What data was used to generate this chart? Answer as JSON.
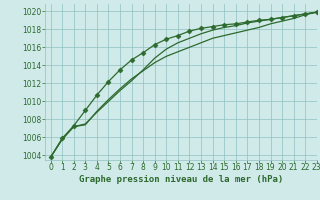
{
  "title": "Graphe pression niveau de la mer (hPa)",
  "background_color": "#d0eaea",
  "grid_color": "#90c0c0",
  "line_color": "#2d6a2d",
  "xlim": [
    -0.5,
    23
  ],
  "ylim": [
    1003.5,
    1020.8
  ],
  "yticks": [
    1004,
    1006,
    1008,
    1010,
    1012,
    1014,
    1016,
    1018,
    1020
  ],
  "xticks": [
    0,
    1,
    2,
    3,
    4,
    5,
    6,
    7,
    8,
    9,
    10,
    11,
    12,
    13,
    14,
    15,
    16,
    17,
    18,
    19,
    20,
    21,
    22,
    23
  ],
  "series": [
    {
      "y": [
        1003.8,
        1005.8,
        1007.2,
        1007.4,
        1008.9,
        1010.2,
        1011.4,
        1012.5,
        1013.4,
        1014.3,
        1015.0,
        1015.5,
        1016.0,
        1016.5,
        1017.0,
        1017.3,
        1017.6,
        1017.9,
        1018.2,
        1018.6,
        1018.9,
        1019.2,
        1019.6,
        1019.9
      ],
      "marker": false,
      "linewidth": 0.9
    },
    {
      "y": [
        1003.8,
        1005.8,
        1007.2,
        1007.5,
        1008.8,
        1010.0,
        1011.2,
        1012.3,
        1013.5,
        1014.8,
        1015.8,
        1016.5,
        1017.0,
        1017.5,
        1017.9,
        1018.2,
        1018.4,
        1018.7,
        1018.9,
        1019.1,
        1019.3,
        1019.5,
        1019.7,
        1019.9
      ],
      "marker": false,
      "linewidth": 0.9
    },
    {
      "y": [
        1003.8,
        1005.9,
        1007.3,
        1009.0,
        1010.7,
        1012.2,
        1013.5,
        1014.6,
        1015.4,
        1016.3,
        1016.9,
        1017.3,
        1017.8,
        1018.1,
        1018.3,
        1018.5,
        1018.6,
        1018.8,
        1019.0,
        1019.1,
        1019.3,
        1019.5,
        1019.7,
        1019.9
      ],
      "marker": true,
      "linewidth": 0.9
    }
  ],
  "marker_style": "D",
  "marker_size": 2.5,
  "fontsize_label": 6.5,
  "fontsize_tick": 5.5,
  "tick_label_color": "#2d6a2d"
}
